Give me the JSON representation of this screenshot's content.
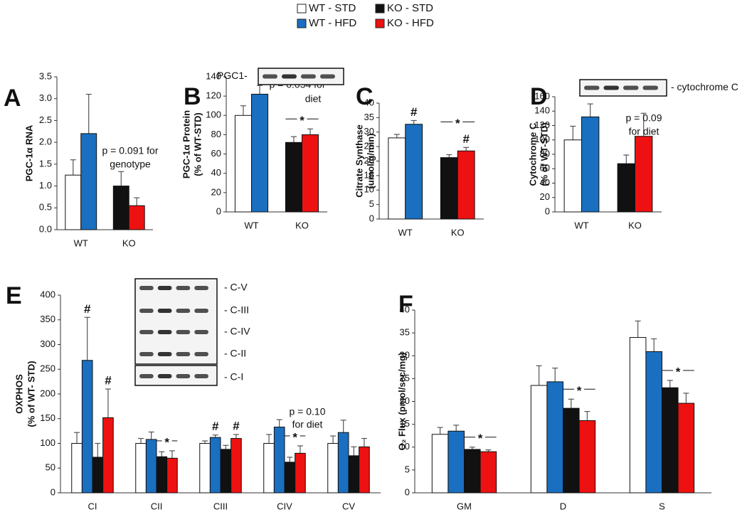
{
  "chart_data": [
    {
      "type": "bar",
      "panel": "A",
      "ylabel": [
        "PGC-1α RNA"
      ],
      "categories": [
        "WT",
        "KO"
      ],
      "series": [
        {
          "name": "WT - STD",
          "color": "#ffffff",
          "values": [
            1.25,
            null
          ],
          "errors": [
            0.35,
            null
          ]
        },
        {
          "name": "WT - HFD",
          "color": "#1a6fc0",
          "values": [
            2.2,
            null
          ],
          "errors": [
            0.9,
            null
          ]
        },
        {
          "name": "KO - STD",
          "color": "#111111",
          "values": [
            null,
            1.0
          ],
          "errors": [
            null,
            0.33
          ]
        },
        {
          "name": "KO - HFD",
          "color": "#ee1111",
          "values": [
            null,
            0.55
          ],
          "errors": [
            null,
            0.18
          ]
        }
      ],
      "ylim": [
        0,
        3.5
      ],
      "yticks": [
        {
          "value": 0,
          "label": "0.0"
        },
        0.5,
        {
          "value": 1,
          "label": "1.0"
        },
        1.5,
        {
          "value": 2,
          "label": "2.0"
        },
        2.5,
        {
          "value": 3,
          "label": "3.0"
        },
        3.5
      ],
      "notes": [
        "p = 0.091 for",
        "genotype"
      ],
      "marks": []
    },
    {
      "type": "bar",
      "panel": "B",
      "ylabel": [
        "PGC-1α Protein",
        "(% of WT-STD)"
      ],
      "categories": [
        "WT",
        "KO"
      ],
      "series": [
        {
          "color": "#ffffff",
          "values": [
            100,
            null
          ],
          "errors": [
            10,
            null
          ]
        },
        {
          "color": "#1a6fc0",
          "values": [
            122,
            null
          ],
          "errors": [
            9,
            null
          ]
        },
        {
          "color": "#111111",
          "values": [
            null,
            72
          ],
          "errors": [
            null,
            6
          ]
        },
        {
          "color": "#ee1111",
          "values": [
            null,
            80
          ],
          "errors": [
            null,
            6
          ]
        }
      ],
      "ylim": [
        0,
        140
      ],
      "yticks": [
        0,
        20,
        40,
        60,
        80,
        100,
        120,
        140
      ],
      "notes": [
        "p = 0.054 for",
        "diet"
      ],
      "blot_labels": [
        "PGC1-"
      ],
      "marks": [
        {
          "text": "*",
          "category": 1,
          "series": [
            2,
            3
          ]
        }
      ]
    },
    {
      "type": "bar",
      "panel": "C",
      "ylabel": [
        "Citrate Synthase",
        "(umol/g/min)"
      ],
      "categories": [
        "WT",
        "KO"
      ],
      "series": [
        {
          "color": "#ffffff",
          "values": [
            28,
            null
          ],
          "errors": [
            1.2,
            null
          ]
        },
        {
          "color": "#1a6fc0",
          "values": [
            32.7,
            null
          ],
          "errors": [
            1.3,
            null
          ]
        },
        {
          "color": "#111111",
          "values": [
            null,
            21.2
          ],
          "errors": [
            null,
            1
          ]
        },
        {
          "color": "#ee1111",
          "values": [
            null,
            23.5
          ],
          "errors": [
            null,
            1.2
          ]
        }
      ],
      "ylim": [
        0,
        40
      ],
      "yticks": [
        0,
        5,
        10,
        15,
        20,
        25,
        30,
        35,
        40
      ],
      "marks": [
        {
          "text": "#",
          "category": 0,
          "series": [
            1
          ]
        },
        {
          "text": "#",
          "category": 1,
          "series": [
            3
          ]
        },
        {
          "text": "*",
          "category": 1,
          "series": [
            2,
            3
          ]
        }
      ]
    },
    {
      "type": "bar",
      "panel": "D",
      "ylabel": [
        "Cytochrome C",
        "(% of WT-STD)"
      ],
      "categories": [
        "WT",
        "KO"
      ],
      "series": [
        {
          "color": "#ffffff",
          "values": [
            100,
            null
          ],
          "errors": [
            19,
            null
          ]
        },
        {
          "color": "#1a6fc0",
          "values": [
            132,
            null
          ],
          "errors": [
            18,
            null
          ]
        },
        {
          "color": "#111111",
          "values": [
            null,
            67
          ],
          "errors": [
            null,
            12
          ]
        },
        {
          "color": "#ee1111",
          "values": [
            null,
            105
          ],
          "errors": [
            null,
            32
          ]
        }
      ],
      "ylim": [
        0,
        160
      ],
      "yticks": [
        0,
        20,
        40,
        60,
        80,
        100,
        120,
        140,
        160
      ],
      "notes": [
        "p = 0.09",
        "for diet"
      ],
      "blot_labels": [
        "- cytochrome C"
      ],
      "marks": []
    },
    {
      "type": "bar",
      "panel": "E",
      "ylabel": [
        "OXPHOS",
        "(% of WT- STD)"
      ],
      "categories": [
        "CI",
        "CII",
        "CIII",
        "CIV",
        "CV"
      ],
      "series": [
        {
          "color": "#ffffff",
          "values": [
            100,
            100,
            100,
            100,
            100
          ],
          "errors": [
            22,
            10,
            5,
            18,
            15
          ]
        },
        {
          "color": "#1a6fc0",
          "values": [
            268,
            108,
            112,
            133,
            122
          ],
          "errors": [
            87,
            15,
            5,
            15,
            25
          ]
        },
        {
          "color": "#111111",
          "values": [
            72,
            73,
            88,
            62,
            75
          ],
          "errors": [
            28,
            10,
            8,
            10,
            18
          ]
        },
        {
          "color": "#ee1111",
          "values": [
            152,
            70,
            110,
            80,
            93
          ],
          "errors": [
            58,
            15,
            8,
            15,
            17
          ]
        }
      ],
      "ylim": [
        0,
        400
      ],
      "yticks": [
        0,
        50,
        100,
        150,
        200,
        250,
        300,
        350,
        400
      ],
      "notes": [
        "p = 0.10",
        "for diet"
      ],
      "blot_labels": [
        "- C-V",
        "- C-III",
        "- C-IV",
        "- C-II",
        "- C-I"
      ],
      "marks": [
        {
          "text": "#",
          "category": 0,
          "series": [
            1
          ]
        },
        {
          "text": "#",
          "category": 0,
          "series": [
            3
          ]
        },
        {
          "text": "#",
          "category": 2,
          "series": [
            1
          ]
        },
        {
          "text": "#",
          "category": 2,
          "series": [
            3
          ]
        },
        {
          "text": "*",
          "category": 1,
          "series": [
            2,
            3
          ]
        },
        {
          "text": "*",
          "category": 3,
          "series": [
            2,
            3
          ]
        }
      ]
    },
    {
      "type": "bar",
      "panel": "F",
      "ylabel": [
        "O₂ Flux (pmol/sec/mg)"
      ],
      "categories": [
        "GM",
        "D",
        "S"
      ],
      "series": [
        {
          "color": "#ffffff",
          "values": [
            12.8,
            23.5,
            34
          ],
          "errors": [
            1.5,
            4.3,
            3.6
          ]
        },
        {
          "color": "#1a6fc0",
          "values": [
            13.5,
            24.3,
            30.9
          ],
          "errors": [
            1.3,
            3,
            2.8
          ]
        },
        {
          "color": "#111111",
          "values": [
            9.5,
            18.5,
            23
          ],
          "errors": [
            0.5,
            2,
            1.6
          ]
        },
        {
          "color": "#ee1111",
          "values": [
            9,
            15.8,
            19.6
          ],
          "errors": [
            0.4,
            2,
            2.2
          ]
        }
      ],
      "ylim": [
        0,
        40
      ],
      "yticks": [
        0,
        5,
        10,
        15,
        20,
        25,
        30,
        35,
        40
      ],
      "marks": [
        {
          "text": "*",
          "category": 0,
          "series": [
            2,
            3
          ]
        },
        {
          "text": "*",
          "category": 1,
          "series": [
            2,
            3
          ]
        },
        {
          "text": "*",
          "category": 2,
          "series": [
            2,
            3
          ]
        }
      ]
    }
  ]
}
